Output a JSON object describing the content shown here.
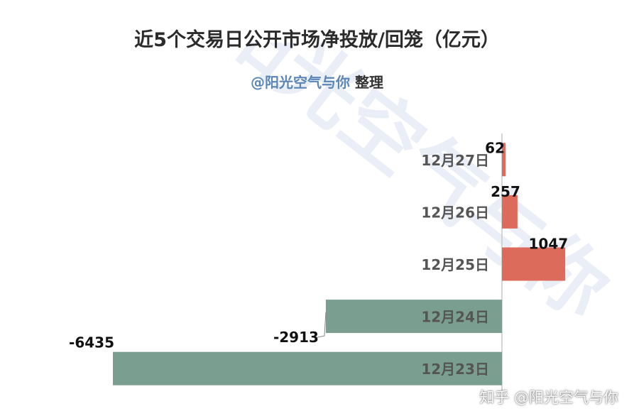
{
  "title": "近5个交易日公开市场净投放/回笼（亿元）",
  "subtitle": {
    "handle": "@阳光空气与你",
    "suffix": " 整理"
  },
  "corner_watermark": "知乎 @阳光空气与你",
  "colors": {
    "positive": "#dd6b5b",
    "negative": "#7a9e90",
    "axis": "#c8c8c8",
    "label": "#555555",
    "value": "#111111",
    "watermark": "#e9eef7"
  },
  "chart_data": {
    "type": "bar",
    "orientation": "horizontal",
    "title": "近5个交易日公开市场净投放/回笼（亿元）",
    "categories": [
      "12月27日",
      "12月26日",
      "12月25日",
      "12月24日",
      "12月23日"
    ],
    "values": [
      62,
      257,
      1047,
      -2913,
      -6435
    ],
    "xlim": [
      -6435,
      1047
    ],
    "grid": false,
    "legend": "none"
  }
}
